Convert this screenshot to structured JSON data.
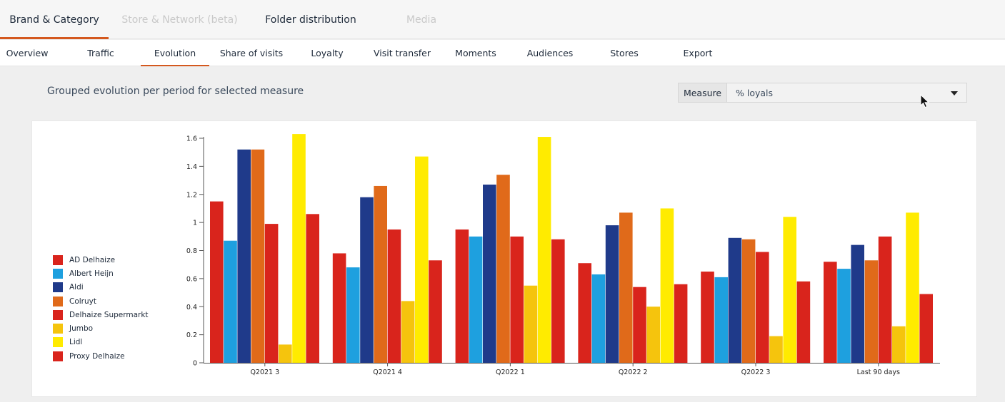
{
  "nav": {
    "top_tabs": [
      {
        "label": "Brand & Category",
        "state": "active"
      },
      {
        "label": "Store & Network (beta)",
        "state": "disabled"
      },
      {
        "label": "Folder distribution",
        "state": "normal"
      },
      {
        "label": "Media",
        "state": "disabled"
      }
    ],
    "sub_tabs": [
      {
        "label": "Overview"
      },
      {
        "label": "Traffic"
      },
      {
        "label": "Evolution",
        "active": true
      },
      {
        "label": "Share of visits"
      },
      {
        "label": "Loyalty"
      },
      {
        "label": "Visit transfer"
      },
      {
        "label": "Moments"
      },
      {
        "label": "Audiences"
      },
      {
        "label": "Stores"
      },
      {
        "label": "Export"
      }
    ]
  },
  "section": {
    "title": "Grouped evolution per period for selected measure"
  },
  "measure": {
    "label": "Measure",
    "selected": "% loyals"
  },
  "colors": {
    "accent": "#d4581e"
  },
  "chart_data": {
    "type": "bar",
    "categories": [
      "Q2021 3",
      "Q2021 4",
      "Q2022 1",
      "Q2022 2",
      "Q2022 3",
      "Last 90 days"
    ],
    "ylim": [
      0,
      1.6
    ],
    "yticks": [
      {
        "value": 0,
        "label": "0"
      },
      {
        "value": 0.2,
        "label": "0.2"
      },
      {
        "value": 0.4,
        "label": "0.4"
      },
      {
        "value": 0.6,
        "label": "0.6"
      },
      {
        "value": 0.8,
        "label": "0.8"
      },
      {
        "value": 1,
        "label": "1"
      },
      {
        "value": 1.2,
        "label": "1.2"
      },
      {
        "value": 1.4,
        "label": "1.4"
      },
      {
        "value": 1.6,
        "label": "1.6"
      }
    ],
    "grid": false,
    "legend_position": "left",
    "series": [
      {
        "name": "AD Delhaize",
        "color": "#d9241c",
        "values": [
          1.15,
          0.78,
          0.95,
          0.71,
          0.65,
          0.72
        ]
      },
      {
        "name": "Albert Heijn",
        "color": "#1ea0df",
        "values": [
          0.87,
          0.68,
          0.9,
          0.63,
          0.61,
          0.67
        ]
      },
      {
        "name": "Aldi",
        "color": "#1f3a8a",
        "values": [
          1.52,
          1.18,
          1.27,
          0.98,
          0.89,
          0.84
        ]
      },
      {
        "name": "Colruyt",
        "color": "#e06a1a",
        "values": [
          1.52,
          1.26,
          1.34,
          1.07,
          0.88,
          0.73
        ]
      },
      {
        "name": "Delhaize Supermarkt",
        "color": "#d9241c",
        "values": [
          0.99,
          0.95,
          0.9,
          0.54,
          0.79,
          0.9
        ]
      },
      {
        "name": "Jumbo",
        "color": "#f5c40d",
        "values": [
          0.13,
          0.44,
          0.55,
          0.4,
          0.19,
          0.26
        ]
      },
      {
        "name": "Lidl",
        "color": "#ffeb00",
        "values": [
          1.63,
          1.47,
          1.61,
          1.1,
          1.04,
          1.07
        ]
      },
      {
        "name": "Proxy Delhaize",
        "color": "#d9241c",
        "values": [
          1.06,
          0.73,
          0.88,
          0.56,
          0.58,
          0.49
        ]
      }
    ]
  }
}
